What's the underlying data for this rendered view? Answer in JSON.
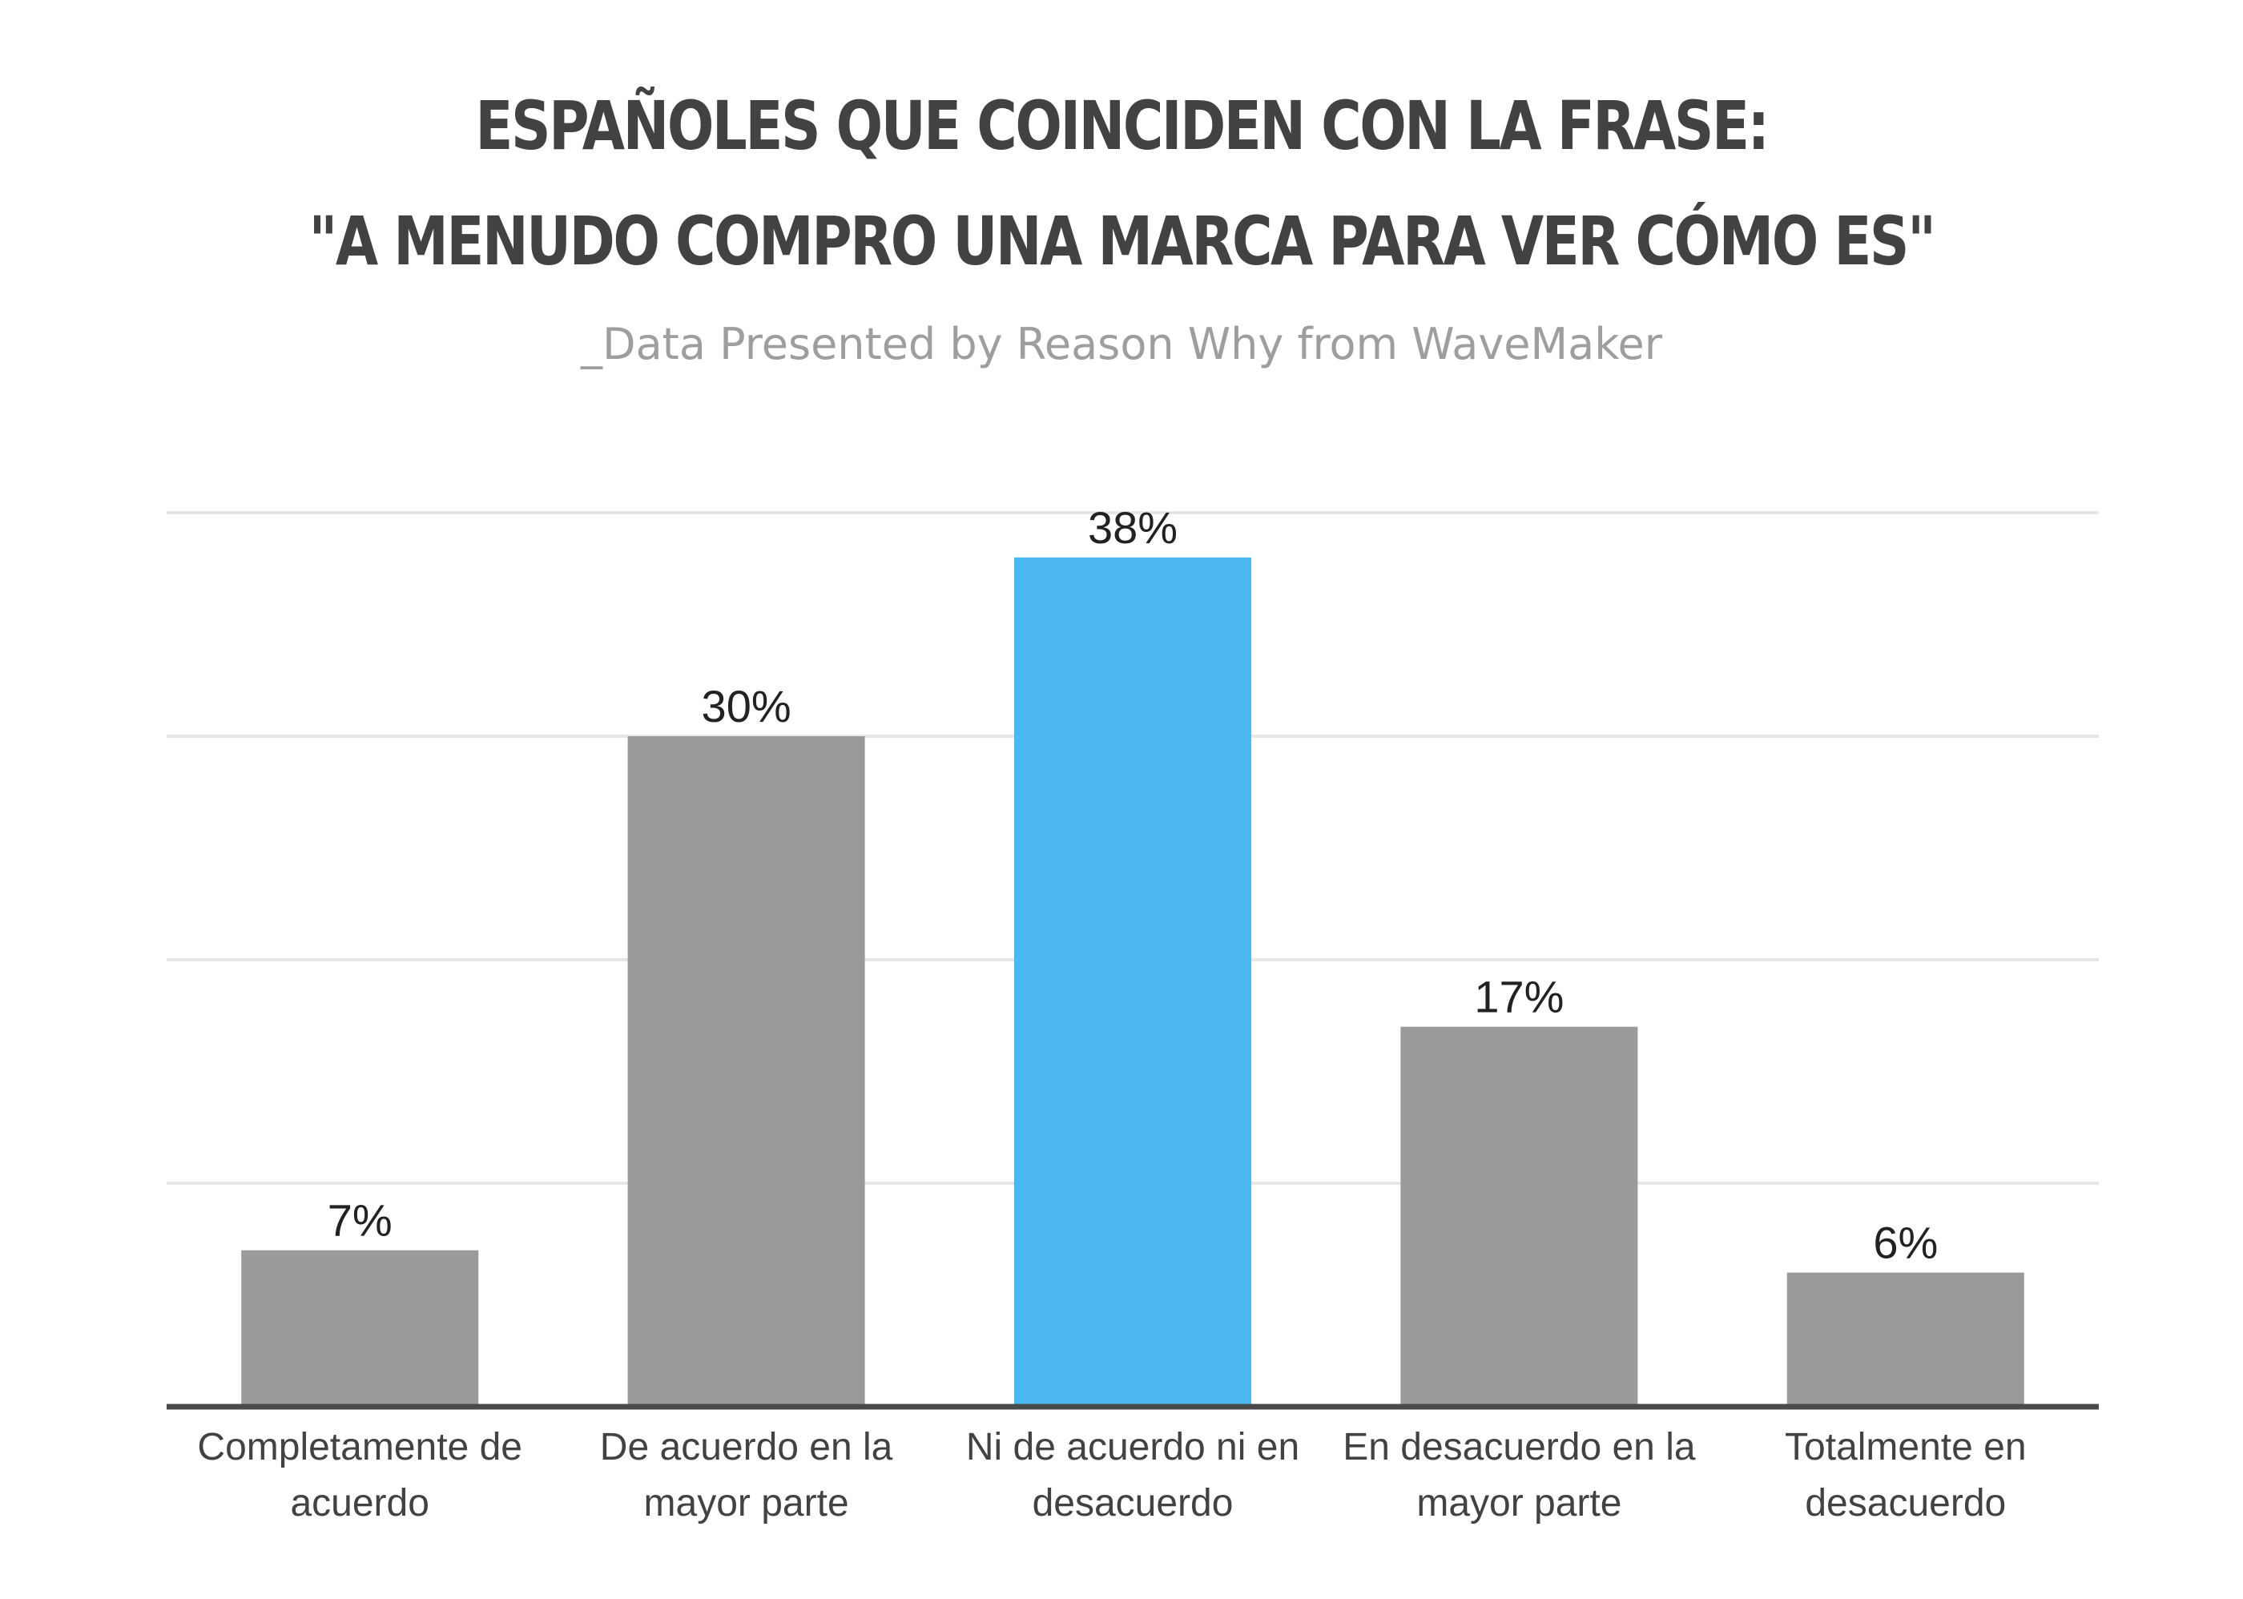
{
  "header": {
    "title_line1": "ESPAÑOLES QUE COINCIDEN CON LA FRASE:",
    "title_line2": "\"A MENUDO COMPRO UNA MARCA PARA VER CÓMO ES\"",
    "subtitle": "_Data Presented by Reason Why from WaveMaker"
  },
  "colors": {
    "default_bar": "#9a9a9a",
    "highlight_bar": "#4cb8f2",
    "gridline": "#e6e6e6",
    "baseline": "#4a4a4a"
  },
  "chart_data": {
    "type": "bar",
    "title": "ESPAÑOLES QUE COINCIDEN CON LA FRASE: \"A MENUDO COMPRO UNA MARCA PARA VER CÓMO ES\"",
    "subtitle": "_Data Presented by Reason Why from WaveMaker",
    "xlabel": "",
    "ylabel": "",
    "categories": [
      [
        "Completamente de",
        "acuerdo"
      ],
      [
        "De acuerdo en la",
        "mayor parte"
      ],
      [
        "Ni de acuerdo ni en",
        "desacuerdo"
      ],
      [
        "En desacuerdo en la",
        "mayor parte"
      ],
      [
        "Totalmente en",
        "desacuerdo"
      ]
    ],
    "values": [
      7,
      30,
      38,
      17,
      6
    ],
    "value_labels": [
      "7%",
      "30%",
      "38%",
      "17%",
      "6%"
    ],
    "highlight_index": 2,
    "ylim": [
      0,
      40
    ],
    "grid": true,
    "y_ticks_shown": false,
    "legend": "none"
  }
}
